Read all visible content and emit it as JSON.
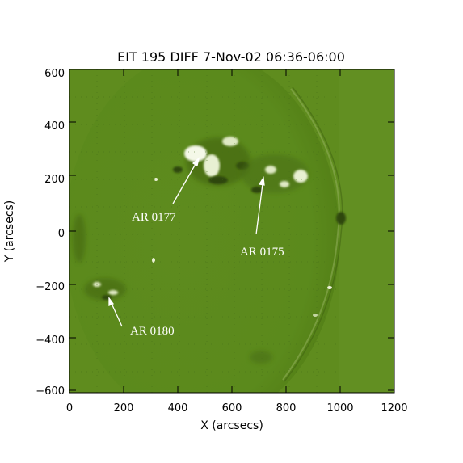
{
  "title": "EIT 195  DIFF  7-Nov-02 06:36-06:00",
  "x_axis": {
    "label": "X (arcsecs)",
    "ticks": [
      "0",
      "200",
      "400",
      "600",
      "800",
      "1000",
      "1200"
    ]
  },
  "y_axis": {
    "label": "Y (arcsecs)",
    "ticks": [
      "600",
      "400",
      "200",
      "0",
      "−200",
      "−400",
      "−600"
    ]
  },
  "annotations": [
    {
      "id": "ar0177",
      "label": "AR 0177"
    },
    {
      "id": "ar0175",
      "label": "AR 0175"
    },
    {
      "id": "ar0180",
      "label": "AR 0180"
    }
  ],
  "colors": {
    "image_background": "#5f8c1e",
    "image_dark": "#3f6110",
    "image_bright": "#f4f8e8",
    "annotation": "#ffffff"
  }
}
